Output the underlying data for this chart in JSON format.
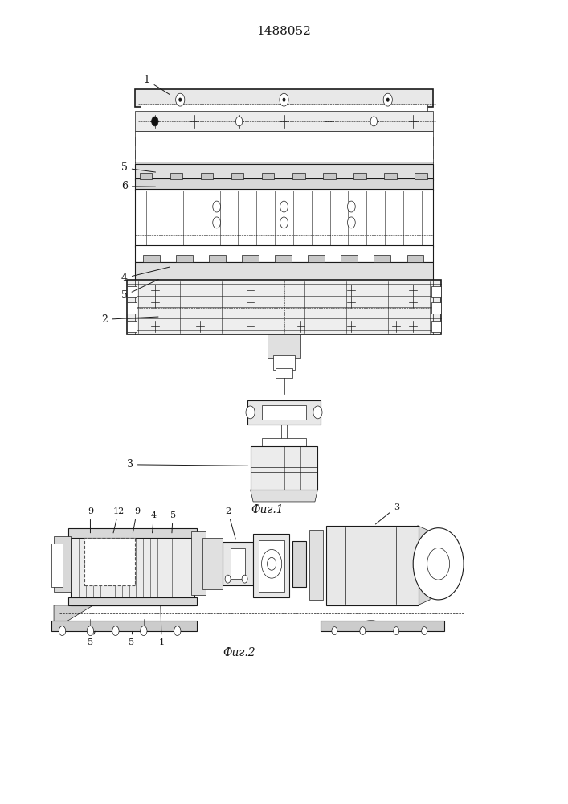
{
  "patent_number": "1488052",
  "fig1_label": "Фиг.1",
  "fig2_label": "Фиг.2",
  "line_color": "#1a1a1a"
}
